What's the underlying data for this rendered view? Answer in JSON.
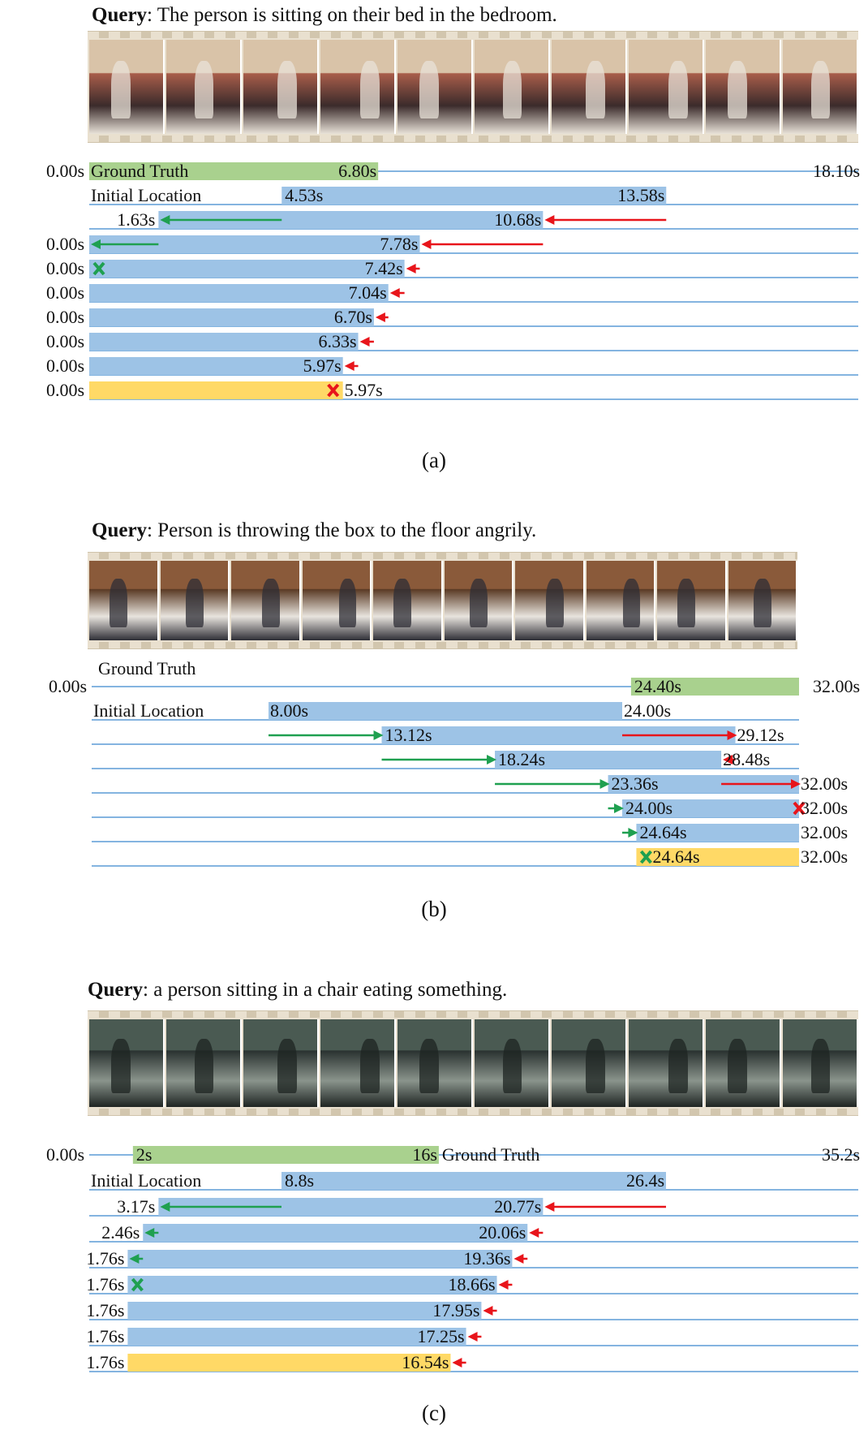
{
  "panels": [
    {
      "id": "a",
      "query_label": "Query",
      "query_text": ": The person is sitting on their bed in the bedroom.",
      "caption": "(a)",
      "labels": {
        "ground_truth": "Ground Truth",
        "initial_location": "Initial Location"
      },
      "start_label": "0.00s",
      "end_label": "18.10s",
      "ground_truth": {
        "start": 0.0,
        "end": 6.8,
        "start_label": "0.00s",
        "end_label": "6.80s"
      },
      "steps": [
        {
          "start": 4.53,
          "end": 13.58,
          "start_label": "4.53s",
          "end_label": "13.58s",
          "start_mark": "none",
          "end_mark": "none"
        },
        {
          "start": 1.63,
          "end": 10.68,
          "start_label": "1.63s",
          "end_label": "10.68s",
          "start_mark": "arrow",
          "end_mark": "arrow"
        },
        {
          "start": 0.0,
          "end": 7.78,
          "start_label": "0.00s",
          "end_label": "7.78s",
          "start_mark": "arrow",
          "end_mark": "arrow"
        },
        {
          "start": 0.0,
          "end": 7.42,
          "start_label": "0.00s",
          "end_label": "7.42s",
          "start_mark": "stop",
          "end_mark": "arrow"
        },
        {
          "start": 0.0,
          "end": 7.04,
          "start_label": "0.00s",
          "end_label": "7.04s",
          "start_mark": "none",
          "end_mark": "arrow"
        },
        {
          "start": 0.0,
          "end": 6.7,
          "start_label": "0.00s",
          "end_label": "6.70s",
          "start_mark": "none",
          "end_mark": "arrow"
        },
        {
          "start": 0.0,
          "end": 6.33,
          "start_label": "0.00s",
          "end_label": "6.33s",
          "start_mark": "none",
          "end_mark": "arrow"
        },
        {
          "start": 0.0,
          "end": 5.97,
          "start_label": "0.00s",
          "end_label": "5.97s",
          "start_mark": "none",
          "end_mark": "arrow"
        },
        {
          "start": 0.0,
          "end": 5.97,
          "start_label": "0.00s",
          "end_label": "5.97s",
          "start_mark": "none",
          "end_mark": "stop",
          "final": true
        }
      ]
    },
    {
      "id": "b",
      "query_label": "Query",
      "query_text": ": Person is throwing the box to the floor angrily.",
      "caption": "(b)",
      "labels": {
        "ground_truth": "Ground Truth",
        "initial_location": "Initial Location"
      },
      "start_label": "0.00s",
      "end_label": "32.00s",
      "ground_truth": {
        "start": 24.4,
        "end": 32.0,
        "start_label": "24.40s",
        "end_label": "32.00s"
      },
      "steps": [
        {
          "start": 8.0,
          "end": 24.0,
          "start_label": "8.00s",
          "end_label": "24.00s",
          "start_mark": "none",
          "end_mark": "none"
        },
        {
          "start": 13.12,
          "end": 29.12,
          "start_label": "13.12s",
          "end_label": "29.12s",
          "start_mark": "arrow",
          "end_mark": "arrow"
        },
        {
          "start": 18.24,
          "end": 28.48,
          "start_label": "18.24s",
          "end_label": "28.48s",
          "start_mark": "arrow",
          "end_mark": "arrow"
        },
        {
          "start": 23.36,
          "end": 32.0,
          "start_label": "23.36s",
          "end_label": "32.00s",
          "start_mark": "arrow",
          "end_mark": "arrow"
        },
        {
          "start": 24.0,
          "end": 32.0,
          "start_label": "24.00s",
          "end_label": "32.00s",
          "start_mark": "arrow",
          "end_mark": "stop"
        },
        {
          "start": 24.64,
          "end": 32.0,
          "start_label": "24.64s",
          "end_label": "32.00s",
          "start_mark": "arrow",
          "end_mark": "none"
        },
        {
          "start": 24.64,
          "end": 32.0,
          "start_label": "24.64s",
          "end_label": "32.00s",
          "start_mark": "stop",
          "end_mark": "none",
          "final": true
        }
      ]
    },
    {
      "id": "c",
      "query_label": "Query",
      "query_text": ": a person sitting in a chair eating something.",
      "caption": "(c)",
      "labels": {
        "ground_truth": "Ground Truth",
        "initial_location": "Initial Location"
      },
      "start_label": "0.00s",
      "end_label": "35.2s",
      "ground_truth": {
        "start": 2,
        "end": 16,
        "start_label": "2s",
        "end_label": "16s"
      },
      "steps": [
        {
          "start": 8.8,
          "end": 26.4,
          "start_label": "8.8s",
          "end_label": "26.4s",
          "start_mark": "none",
          "end_mark": "none"
        },
        {
          "start": 3.17,
          "end": 20.77,
          "start_label": "3.17s",
          "end_label": "20.77s",
          "start_mark": "arrow",
          "end_mark": "arrow"
        },
        {
          "start": 2.46,
          "end": 20.06,
          "start_label": "2.46s",
          "end_label": "20.06s",
          "start_mark": "arrow",
          "end_mark": "arrow"
        },
        {
          "start": 1.76,
          "end": 19.36,
          "start_label": "1.76s",
          "end_label": "19.36s",
          "start_mark": "arrow",
          "end_mark": "arrow"
        },
        {
          "start": 1.76,
          "end": 18.66,
          "start_label": "1.76s",
          "end_label": "18.66s",
          "start_mark": "stop",
          "end_mark": "arrow"
        },
        {
          "start": 1.76,
          "end": 17.95,
          "start_label": "1.76s",
          "end_label": "17.95s",
          "start_mark": "none",
          "end_mark": "arrow"
        },
        {
          "start": 1.76,
          "end": 17.25,
          "start_label": "1.76s",
          "end_label": "17.25s",
          "start_mark": "none",
          "end_mark": "arrow"
        },
        {
          "start": 1.76,
          "end": 16.54,
          "start_label": "1.76s",
          "end_label": "16.54s",
          "start_mark": "none",
          "end_mark": "arrow",
          "final": true
        }
      ]
    }
  ],
  "colors": {
    "ground_truth": "#a9d18e",
    "step": "#9dc3e6",
    "final": "#ffd966",
    "axis_line": "#5b9bd5",
    "arrow_left": "#1fa050",
    "arrow_right": "#e8151b",
    "stop_start": "#1fa050",
    "stop_end": "#e8151b"
  }
}
